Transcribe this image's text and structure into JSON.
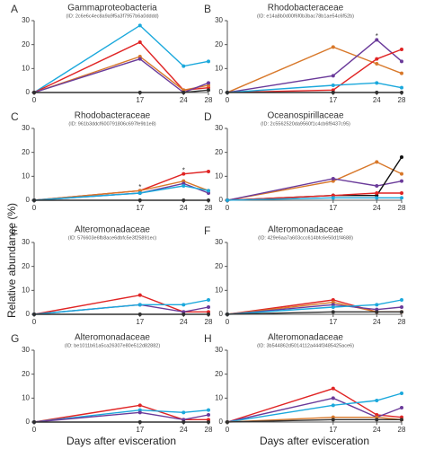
{
  "xlabel": "Days after evisceration",
  "ylabel": "Relative abundance (%)",
  "chart_data": [
    {
      "type": "line",
      "letter": "A",
      "title": "Gammaproteobacteria",
      "subtitle": "(ID: 2c6e6c4ec8a9a9f5a3f7957b6a0dddd)",
      "x": [
        0,
        17,
        24,
        28
      ],
      "xlim": [
        0,
        28
      ],
      "xticks": [
        0,
        17,
        24,
        28
      ],
      "ylim": [
        0,
        30
      ],
      "yticks": [
        0,
        10,
        20,
        30
      ],
      "series": [
        {
          "color": "#1aa8dc",
          "values": [
            0,
            28,
            11,
            13
          ]
        },
        {
          "color": "#e02424",
          "values": [
            0,
            21,
            1,
            2
          ]
        },
        {
          "color": "#d8782a",
          "values": [
            0,
            15,
            1,
            3
          ]
        },
        {
          "color": "#6a3a9a",
          "values": [
            0,
            14,
            0,
            4
          ]
        },
        {
          "color": "#303030",
          "values": [
            0,
            0,
            0,
            1
          ]
        }
      ]
    },
    {
      "type": "line",
      "letter": "B",
      "title": "Rhodobacteraceae",
      "subtitle": "(ID: e14a8b0d00f6f0b3bac78b1ae54c6f52b)",
      "x": [
        0,
        17,
        24,
        28
      ],
      "xlim": [
        0,
        28
      ],
      "xticks": [
        0,
        17,
        24,
        28
      ],
      "ylim": [
        0,
        30
      ],
      "yticks": [
        0,
        10,
        20,
        30
      ],
      "annotations": [
        {
          "x": 24,
          "y": 24,
          "text": "*"
        }
      ],
      "series": [
        {
          "color": "#d8782a",
          "values": [
            0,
            19,
            12,
            8
          ]
        },
        {
          "color": "#6a3a9a",
          "values": [
            0,
            7,
            22,
            13
          ]
        },
        {
          "color": "#e02424",
          "values": [
            0,
            1,
            14,
            18
          ]
        },
        {
          "color": "#1aa8dc",
          "values": [
            0,
            3,
            4,
            2
          ]
        },
        {
          "color": "#303030",
          "values": [
            0,
            0,
            0,
            0
          ]
        }
      ]
    },
    {
      "type": "line",
      "letter": "C",
      "title": "Rhodobacteraceae",
      "subtitle": "(ID: 961b3ddcf600791806c697fe9b1e8)",
      "x": [
        0,
        17,
        24,
        28
      ],
      "xlim": [
        0,
        28
      ],
      "xticks": [
        0,
        17,
        24,
        28
      ],
      "ylim": [
        0,
        30
      ],
      "yticks": [
        0,
        10,
        20,
        30
      ],
      "annotations": [
        {
          "x": 17,
          "y": 6,
          "text": "*"
        },
        {
          "x": 24,
          "y": 13,
          "text": "*"
        }
      ],
      "series": [
        {
          "color": "#e02424",
          "values": [
            0,
            4,
            11,
            12
          ]
        },
        {
          "color": "#d8782a",
          "values": [
            0,
            4,
            8,
            4
          ]
        },
        {
          "color": "#6a3a9a",
          "values": [
            0,
            3,
            7,
            3
          ]
        },
        {
          "color": "#1aa8dc",
          "values": [
            0,
            3,
            6,
            4
          ]
        },
        {
          "color": "#303030",
          "values": [
            0,
            0,
            0,
            0
          ]
        }
      ]
    },
    {
      "type": "line",
      "letter": "D",
      "title": "Oceanospirillaceae",
      "subtitle": "(ID: 2c5562520da9560f1c4cb6f9437c95)",
      "x": [
        0,
        17,
        24,
        28
      ],
      "xlim": [
        0,
        28
      ],
      "xticks": [
        0,
        17,
        24,
        28
      ],
      "ylim": [
        0,
        30
      ],
      "yticks": [
        0,
        10,
        20,
        30
      ],
      "series": [
        {
          "color": "#d8782a",
          "values": [
            0,
            8,
            16,
            11
          ]
        },
        {
          "color": "#6a3a9a",
          "values": [
            0,
            9,
            6,
            8
          ]
        },
        {
          "color": "#111111",
          "values": [
            0,
            2,
            2,
            18
          ]
        },
        {
          "color": "#e02424",
          "values": [
            0,
            2,
            3,
            3
          ]
        },
        {
          "color": "#1aa8dc",
          "values": [
            0,
            1,
            1,
            1
          ]
        }
      ]
    },
    {
      "type": "line",
      "letter": "E",
      "title": "Alteromonadaceae",
      "subtitle": "(ID: 576603e6fb8ace6dbfc5e3f25891ec)",
      "x": [
        0,
        17,
        24,
        28
      ],
      "xlim": [
        0,
        28
      ],
      "xticks": [
        0,
        17,
        24,
        28
      ],
      "ylim": [
        0,
        30
      ],
      "yticks": [
        0,
        10,
        20,
        30
      ],
      "series": [
        {
          "color": "#e02424",
          "values": [
            0,
            8,
            1,
            1
          ]
        },
        {
          "color": "#6a3a9a",
          "values": [
            0,
            4,
            1,
            3
          ]
        },
        {
          "color": "#1aa8dc",
          "values": [
            0,
            4,
            4,
            6
          ]
        },
        {
          "color": "#303030",
          "values": [
            0,
            0,
            0,
            0
          ]
        }
      ]
    },
    {
      "type": "line",
      "letter": "F",
      "title": "Alteromonadaceae",
      "subtitle": "(ID: 429e6aa7a603ccc614bfc6e50d1f4688)",
      "x": [
        0,
        17,
        24,
        28
      ],
      "xlim": [
        0,
        28
      ],
      "xticks": [
        0,
        17,
        24,
        28
      ],
      "ylim": [
        0,
        30
      ],
      "yticks": [
        0,
        10,
        20,
        30
      ],
      "series": [
        {
          "color": "#e02424",
          "values": [
            0,
            6,
            1,
            1
          ]
        },
        {
          "color": "#d8782a",
          "values": [
            0,
            5,
            1,
            1
          ]
        },
        {
          "color": "#6a3a9a",
          "values": [
            0,
            4,
            2,
            3
          ]
        },
        {
          "color": "#1aa8dc",
          "values": [
            0,
            3,
            4,
            6
          ]
        },
        {
          "color": "#303030",
          "values": [
            0,
            1,
            1,
            1
          ]
        }
      ]
    },
    {
      "type": "line",
      "letter": "G",
      "title": "Alteromonadaceae",
      "subtitle": "(ID: be1011b61a5ca26307e80e512d82882)",
      "x": [
        0,
        17,
        24,
        28
      ],
      "xlim": [
        0,
        28
      ],
      "xticks": [
        0,
        17,
        24,
        28
      ],
      "ylim": [
        0,
        30
      ],
      "yticks": [
        0,
        10,
        20,
        30
      ],
      "series": [
        {
          "color": "#e02424",
          "values": [
            0,
            7,
            1,
            1
          ]
        },
        {
          "color": "#1aa8dc",
          "values": [
            0,
            5,
            4,
            5
          ]
        },
        {
          "color": "#6a3a9a",
          "values": [
            0,
            4,
            1,
            3
          ]
        },
        {
          "color": "#303030",
          "values": [
            0,
            0,
            0,
            0
          ]
        }
      ]
    },
    {
      "type": "line",
      "letter": "H",
      "title": "Alteromonadaceae",
      "subtitle": "(ID: 3b544862d5014112a444f3485425ace6)",
      "x": [
        0,
        17,
        24,
        28
      ],
      "xlim": [
        0,
        28
      ],
      "xticks": [
        0,
        17,
        24,
        28
      ],
      "ylim": [
        0,
        30
      ],
      "yticks": [
        0,
        10,
        20,
        30
      ],
      "series": [
        {
          "color": "#e02424",
          "values": [
            0,
            14,
            3,
            2
          ]
        },
        {
          "color": "#6a3a9a",
          "values": [
            0,
            10,
            2,
            6
          ]
        },
        {
          "color": "#1aa8dc",
          "values": [
            0,
            7,
            9,
            12
          ]
        },
        {
          "color": "#d8782a",
          "values": [
            0,
            2,
            2,
            1
          ]
        },
        {
          "color": "#303030",
          "values": [
            0,
            1,
            1,
            1
          ]
        }
      ]
    }
  ]
}
